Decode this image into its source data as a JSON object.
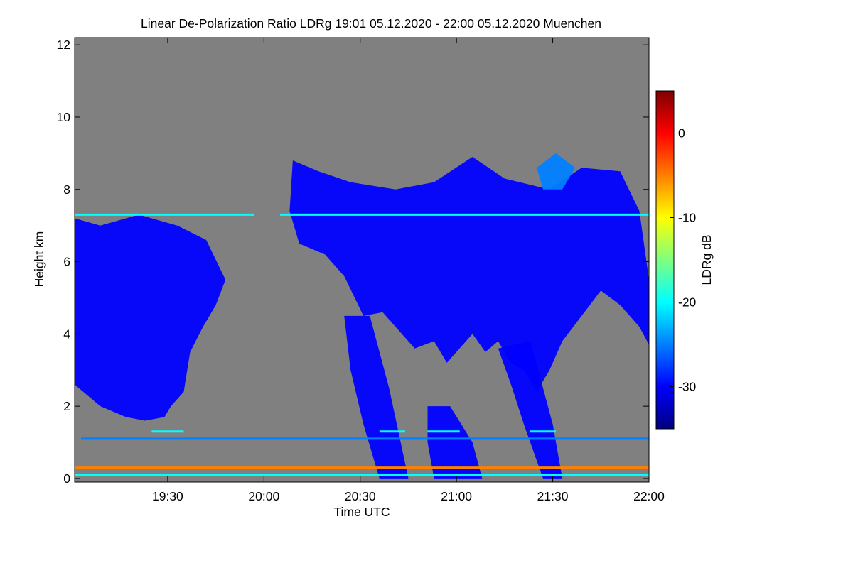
{
  "chart_data": {
    "type": "heatmap",
    "title": "Linear De-Polarization Ratio LDRg   19:01 05.12.2020 - 22:00 05.12.2020 Muenchen",
    "xlabel": "Time UTC",
    "ylabel": "Height km",
    "x_range_minutes": [
      0,
      179
    ],
    "x_ticks": [
      {
        "label": "19:30",
        "minutes": 29
      },
      {
        "label": "20:00",
        "minutes": 59
      },
      {
        "label": "20:30",
        "minutes": 89
      },
      {
        "label": "21:00",
        "minutes": 119
      },
      {
        "label": "21:30",
        "minutes": 149
      },
      {
        "label": "22:00",
        "minutes": 179
      }
    ],
    "ylim": [
      -0.1,
      12.2
    ],
    "y_ticks": [
      0,
      2,
      4,
      6,
      8,
      10,
      12
    ],
    "colorbar": {
      "label": "LDRg dB",
      "range": [
        -35,
        5
      ],
      "ticks": [
        0,
        -10,
        -20,
        -30
      ],
      "colors": [
        "#00007f",
        "#0000ff",
        "#007fff",
        "#00ffff",
        "#7fff7f",
        "#ffff00",
        "#ff7f00",
        "#ff0000",
        "#7f0000"
      ]
    },
    "background_color": "#808080",
    "cloud_regions": [
      {
        "name": "cloud-19h",
        "minutes": [
          [
            0,
            7.2
          ],
          [
            8,
            7.0
          ],
          [
            20,
            7.3
          ],
          [
            32,
            7.0
          ],
          [
            41,
            6.6
          ],
          [
            47,
            5.5
          ],
          [
            44,
            4.8
          ],
          [
            40,
            4.2
          ],
          [
            36,
            3.5
          ],
          [
            34,
            2.4
          ],
          [
            30,
            2.0
          ],
          [
            28,
            1.7
          ],
          [
            22,
            1.6
          ],
          [
            16,
            1.7
          ],
          [
            8,
            2.0
          ],
          [
            0,
            2.6
          ]
        ],
        "ldr_db": -30
      },
      {
        "name": "cloud-main",
        "minutes": [
          [
            68,
            8.8
          ],
          [
            76,
            8.5
          ],
          [
            86,
            8.2
          ],
          [
            100,
            8.0
          ],
          [
            112,
            8.2
          ],
          [
            124,
            8.9
          ],
          [
            134,
            8.3
          ],
          [
            148,
            8.0
          ],
          [
            158,
            8.6
          ],
          [
            170,
            8.5
          ],
          [
            176,
            7.4
          ],
          [
            179,
            5.5
          ],
          [
            179,
            3.7
          ],
          [
            176,
            4.2
          ],
          [
            170,
            4.8
          ],
          [
            164,
            5.2
          ],
          [
            158,
            4.5
          ],
          [
            152,
            3.8
          ],
          [
            148,
            3.0
          ],
          [
            144,
            2.4
          ],
          [
            140,
            3.0
          ],
          [
            136,
            3.2
          ],
          [
            132,
            3.8
          ],
          [
            128,
            3.5
          ],
          [
            124,
            4.0
          ],
          [
            116,
            3.2
          ],
          [
            112,
            3.8
          ],
          [
            106,
            3.6
          ],
          [
            100,
            4.2
          ],
          [
            96,
            4.6
          ],
          [
            90,
            4.5
          ],
          [
            84,
            5.6
          ],
          [
            78,
            6.2
          ],
          [
            70,
            6.5
          ],
          [
            67,
            7.4
          ]
        ],
        "ldr_db": -28
      },
      {
        "name": "fallstreak-1",
        "minutes": [
          [
            84,
            4.5
          ],
          [
            92,
            4.5
          ],
          [
            98,
            2.5
          ],
          [
            104,
            0.0
          ],
          [
            95,
            0.0
          ],
          [
            90,
            1.5
          ],
          [
            86,
            3.0
          ]
        ],
        "ldr_db": -32
      },
      {
        "name": "fallstreak-2",
        "minutes": [
          [
            110,
            2.0
          ],
          [
            117,
            2.0
          ],
          [
            124,
            1.0
          ],
          [
            127,
            0.0
          ],
          [
            112,
            0.0
          ],
          [
            110,
            1.0
          ]
        ],
        "ldr_db": -32
      },
      {
        "name": "fallstreak-3",
        "minutes": [
          [
            132,
            3.6
          ],
          [
            142,
            3.8
          ],
          [
            146,
            2.5
          ],
          [
            149,
            1.5
          ],
          [
            152,
            0.0
          ],
          [
            146,
            0.0
          ],
          [
            140,
            1.5
          ],
          [
            136,
            2.6
          ]
        ],
        "ldr_db": -32
      },
      {
        "name": "cloud-top-extension",
        "minutes": [
          [
            144,
            8.6
          ],
          [
            150,
            9.0
          ],
          [
            156,
            8.6
          ],
          [
            152,
            8.0
          ],
          [
            146,
            8.0
          ]
        ],
        "ldr_db": -26
      }
    ],
    "layers": [
      {
        "name": "layer-7.3km",
        "height_km": 7.3,
        "segments": [
          [
            0,
            56
          ],
          [
            64,
            179
          ]
        ],
        "ldr_db": -18
      },
      {
        "name": "layer-1.1km",
        "height_km": 1.1,
        "segments": [
          [
            2,
            179
          ]
        ],
        "ldr_db": -24
      },
      {
        "name": "layer-1.3km-melting",
        "height_km": 1.3,
        "segments": [
          [
            24,
            34
          ],
          [
            95,
            103
          ],
          [
            110,
            120
          ],
          [
            142,
            150
          ]
        ],
        "ldr_db": -18
      },
      {
        "name": "layer-0.3km",
        "height_km": 0.3,
        "segments": [
          [
            0,
            179
          ]
        ],
        "ldr_db": -4
      },
      {
        "name": "layer-0.1km",
        "height_km": 0.1,
        "segments": [
          [
            0,
            179
          ]
        ],
        "ldr_db": -22
      }
    ]
  }
}
